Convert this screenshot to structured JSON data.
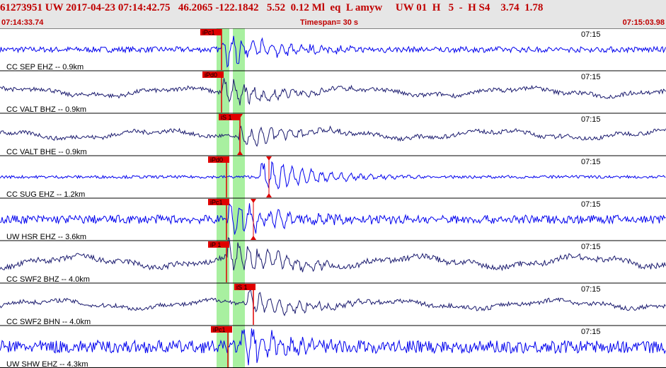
{
  "header": {
    "event_id": "61273951",
    "network": "UW",
    "date": "2017-04-23",
    "origin_time": "07:14:42.75",
    "latitude": "46.2065",
    "longitude": "-122.1842",
    "depth": "5.52",
    "magnitude": "0.12",
    "mag_type": "Ml",
    "event_type": "eq",
    "flag": "L",
    "author": "amyw",
    "auth_net": "UW",
    "version": "01",
    "gtype": "H",
    "quality_count": "5",
    "dash": "-",
    "solution": "H S4",
    "value_a": "3.74",
    "value_b": "1.78",
    "start_time": "07:14:33.74",
    "timespan_label": "Timespan=  30 s",
    "end_time": "07:15:03.98"
  },
  "time_tick": "07:15",
  "colors": {
    "header_bg": "#e6e6e6",
    "header_text": "#c00000",
    "bright_trace": "#0000ee",
    "dark_trace": "#1a1a6e",
    "pick": "#e00000",
    "pick_window": "#a8f0a0"
  },
  "channels": [
    {
      "label": "CC SEP EHZ -- 0.9km",
      "style": "bright",
      "picks": [
        {
          "label": "iPc1",
          "type": "P"
        }
      ]
    },
    {
      "label": "CC VALT BHZ -- 0.9km",
      "style": "dark",
      "picks": [
        {
          "label": "iPd0",
          "type": "P"
        }
      ]
    },
    {
      "label": "CC VALT BHE -- 0.9km",
      "style": "dark",
      "picks": [
        {
          "label": "iS 1",
          "type": "S"
        }
      ]
    },
    {
      "label": "CC SUG EHZ -- 1.2km",
      "style": "bright",
      "picks": [
        {
          "label": "iPd0",
          "type": "P"
        }
      ]
    },
    {
      "label": "UW HSR EHZ -- 3.6km",
      "style": "bright",
      "picks": [
        {
          "label": "iPc1",
          "type": "P"
        }
      ]
    },
    {
      "label": "CC SWF2 BHZ -- 4.0km",
      "style": "dark",
      "picks": [
        {
          "label": "iP 1",
          "type": "P"
        }
      ]
    },
    {
      "label": "CC SWF2 BHN -- 4.0km",
      "style": "dark",
      "picks": [
        {
          "label": "iS 1",
          "type": "S"
        }
      ]
    },
    {
      "label": "UW SHW EHZ -- 4.3km",
      "style": "bright",
      "picks": [
        {
          "label": "iPc1",
          "type": "P"
        }
      ]
    }
  ]
}
